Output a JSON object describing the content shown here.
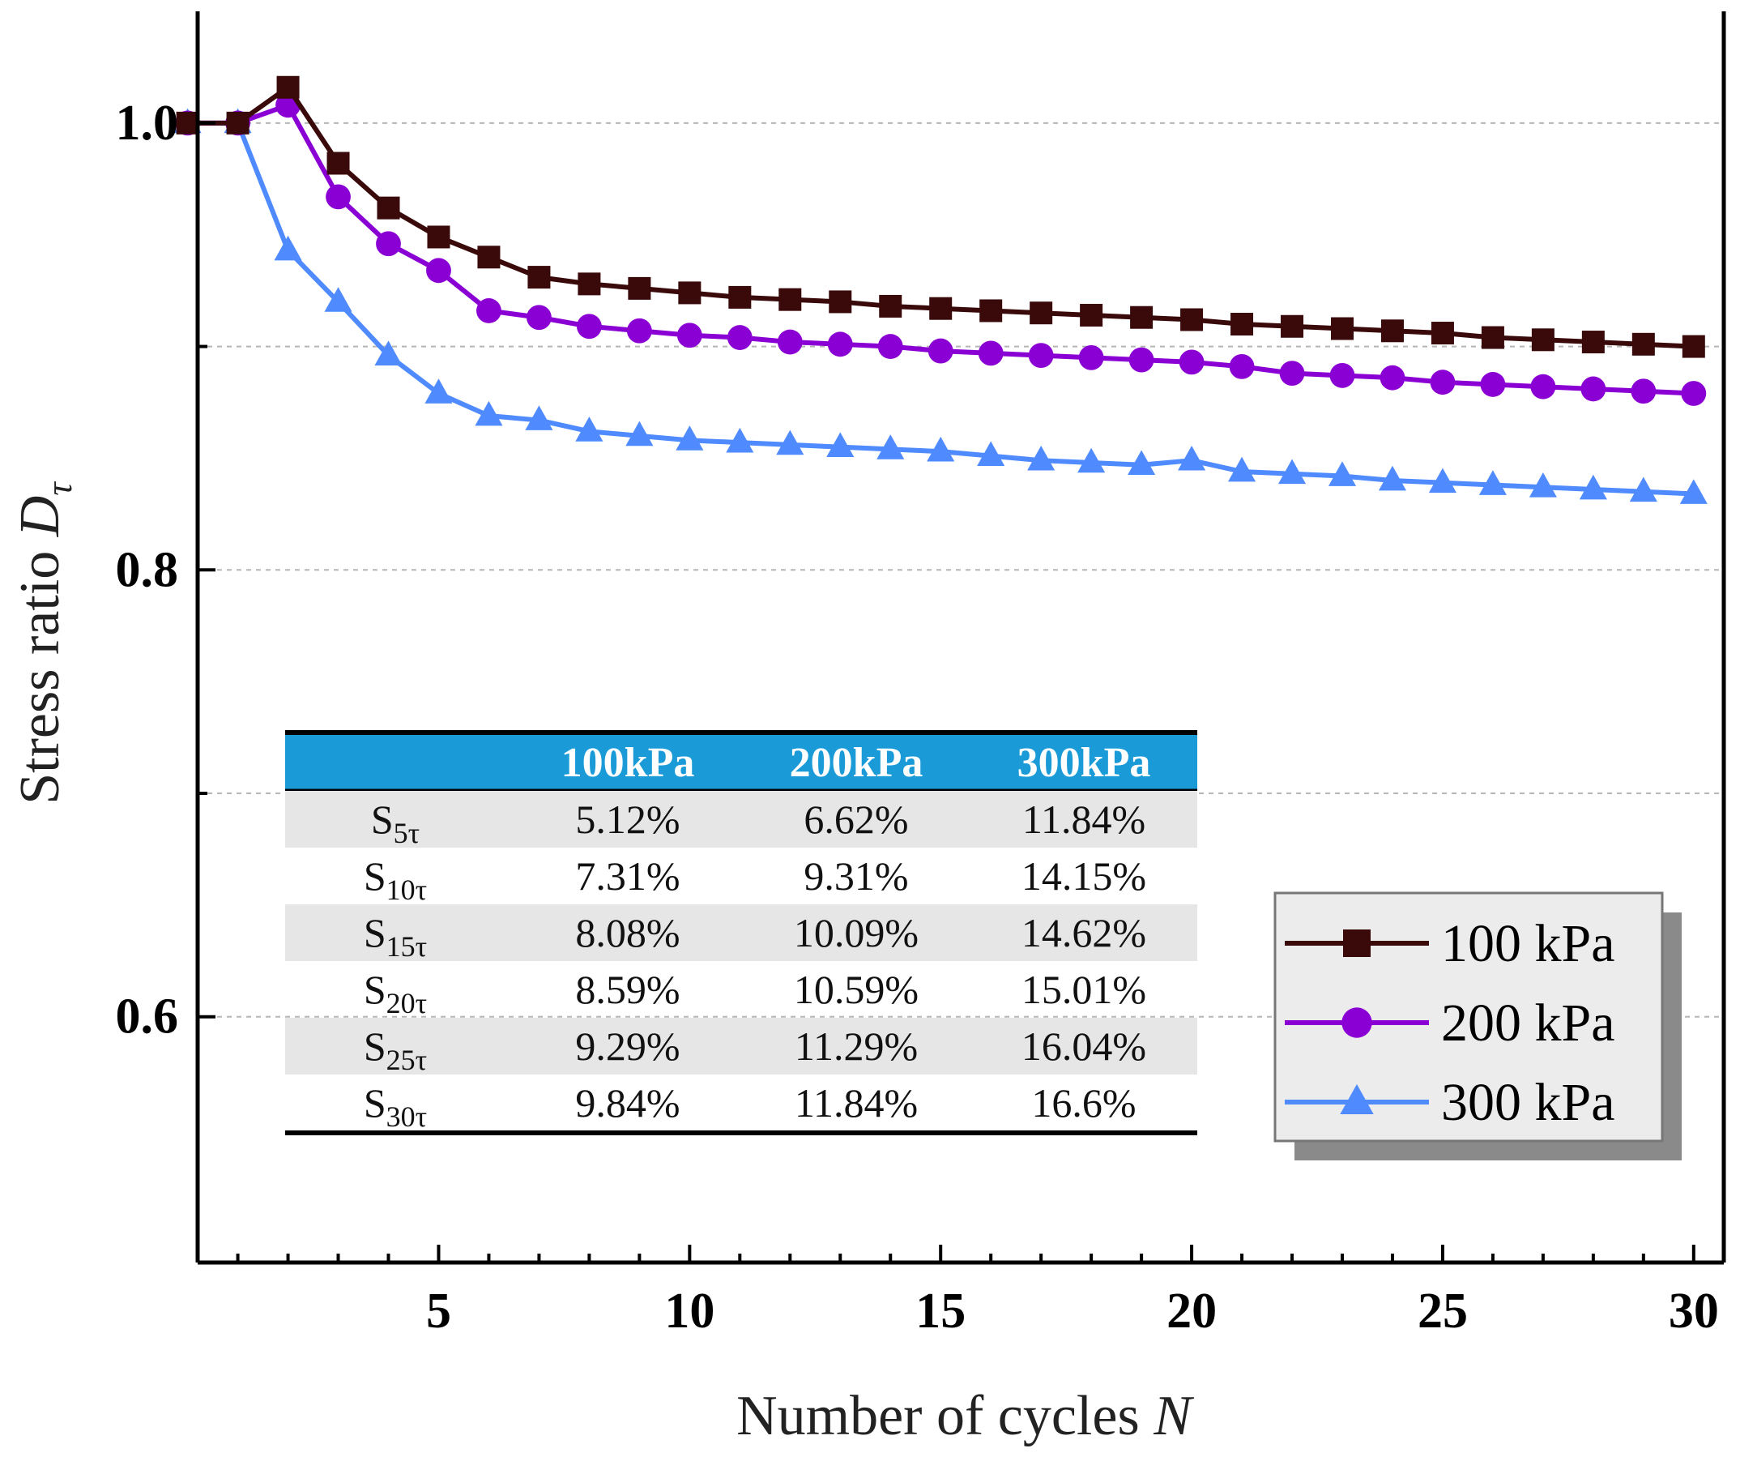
{
  "chart_data": {
    "type": "line",
    "title": "",
    "xlabel": "Number of cycles",
    "xlabel_var": "N",
    "ylabel": "Stress ratio",
    "ylabel_var": "D",
    "ylabel_sub": "τ",
    "xlim": [
      0.2,
      30.6
    ],
    "ylim": [
      0.49,
      1.05
    ],
    "xticks": [
      5,
      10,
      15,
      20,
      25,
      30
    ],
    "yticks": [
      0.6,
      0.8,
      1.0
    ],
    "ytick_labels": [
      "0.6",
      "0.8",
      "1.0"
    ],
    "grid": "horizontal dashed",
    "legend_position": "bottom-right",
    "x": [
      0,
      1,
      2,
      3,
      4,
      5,
      6,
      7,
      8,
      9,
      10,
      11,
      12,
      13,
      14,
      15,
      16,
      17,
      18,
      19,
      20,
      21,
      22,
      23,
      24,
      25,
      26,
      27,
      28,
      29,
      30
    ],
    "series": [
      {
        "name": "100 kPa",
        "color": "#3a0a0a",
        "marker": "square",
        "values": [
          1.0,
          1.0,
          1.016,
          0.982,
          0.962,
          0.949,
          0.94,
          0.931,
          0.928,
          0.926,
          0.924,
          0.922,
          0.921,
          0.92,
          0.918,
          0.917,
          0.916,
          0.915,
          0.914,
          0.913,
          0.912,
          0.91,
          0.909,
          0.908,
          0.907,
          0.906,
          0.904,
          0.903,
          0.902,
          0.901,
          0.9
        ]
      },
      {
        "name": "200 kPa",
        "color": "#8a00d4",
        "marker": "circle",
        "values": [
          1.0,
          1.0,
          1.008,
          0.967,
          0.946,
          0.934,
          0.916,
          0.913,
          0.909,
          0.907,
          0.905,
          0.904,
          0.902,
          0.901,
          0.9,
          0.898,
          0.897,
          0.896,
          0.895,
          0.894,
          0.893,
          0.891,
          0.888,
          0.887,
          0.886,
          0.884,
          0.883,
          0.882,
          0.881,
          0.88,
          0.879
        ]
      },
      {
        "name": "300 kPa",
        "color": "#4f8bff",
        "marker": "triangle",
        "values": [
          1.0,
          1.0,
          0.943,
          0.92,
          0.896,
          0.879,
          0.869,
          0.867,
          0.862,
          0.86,
          0.858,
          0.857,
          0.856,
          0.855,
          0.854,
          0.853,
          0.851,
          0.849,
          0.848,
          0.847,
          0.849,
          0.844,
          0.843,
          0.842,
          0.84,
          0.839,
          0.838,
          0.837,
          0.836,
          0.835,
          0.834
        ]
      }
    ]
  },
  "summary_table": {
    "columns": [
      "",
      "100kPa",
      "200kPa",
      "300kPa"
    ],
    "rows": [
      {
        "label": "S",
        "sub": "5τ",
        "values": [
          "5.12%",
          "6.62%",
          "11.84%"
        ]
      },
      {
        "label": "S",
        "sub": "10τ",
        "values": [
          "7.31%",
          "9.31%",
          "14.15%"
        ]
      },
      {
        "label": "S",
        "sub": "15τ",
        "values": [
          "8.08%",
          "10.09%",
          "14.62%"
        ]
      },
      {
        "label": "S",
        "sub": "20τ",
        "values": [
          "8.59%",
          "10.59%",
          "15.01%"
        ]
      },
      {
        "label": "S",
        "sub": "25τ",
        "values": [
          "9.29%",
          "11.29%",
          "16.04%"
        ]
      },
      {
        "label": "S",
        "sub": "30τ",
        "values": [
          "9.84%",
          "11.84%",
          "16.6%"
        ]
      }
    ],
    "header_color": "#1a9bd8",
    "stripe_color": "#e6e6e6"
  }
}
